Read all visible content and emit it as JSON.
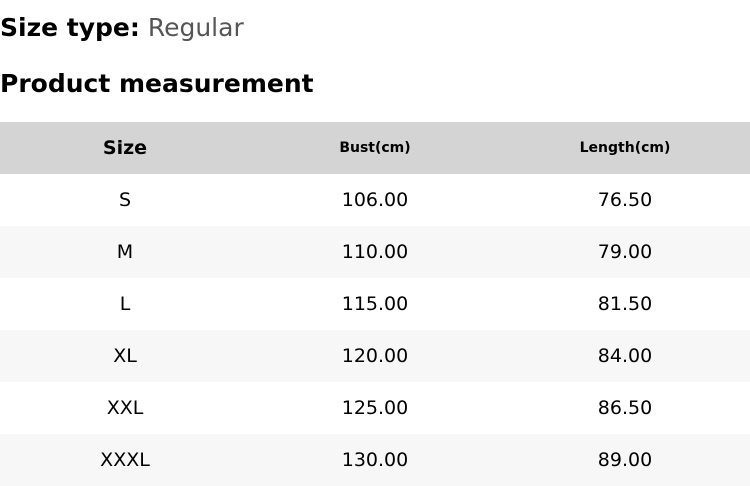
{
  "size_type": {
    "label": "Size type:",
    "value": "Regular"
  },
  "title": "Product measurement",
  "table": {
    "headers": [
      "Size",
      "Bust(cm)",
      "Length(cm)"
    ],
    "rows": [
      [
        "S",
        "106.00",
        "76.50"
      ],
      [
        "M",
        "110.00",
        "79.00"
      ],
      [
        "L",
        "115.00",
        "81.50"
      ],
      [
        "XL",
        "120.00",
        "84.00"
      ],
      [
        "XXL",
        "125.00",
        "86.50"
      ],
      [
        "XXXL",
        "130.00",
        "89.00"
      ]
    ]
  },
  "colors": {
    "header_bg": "#d4d4d4",
    "stripe_bg": "#f7f7f7",
    "value_text": "#555555"
  }
}
